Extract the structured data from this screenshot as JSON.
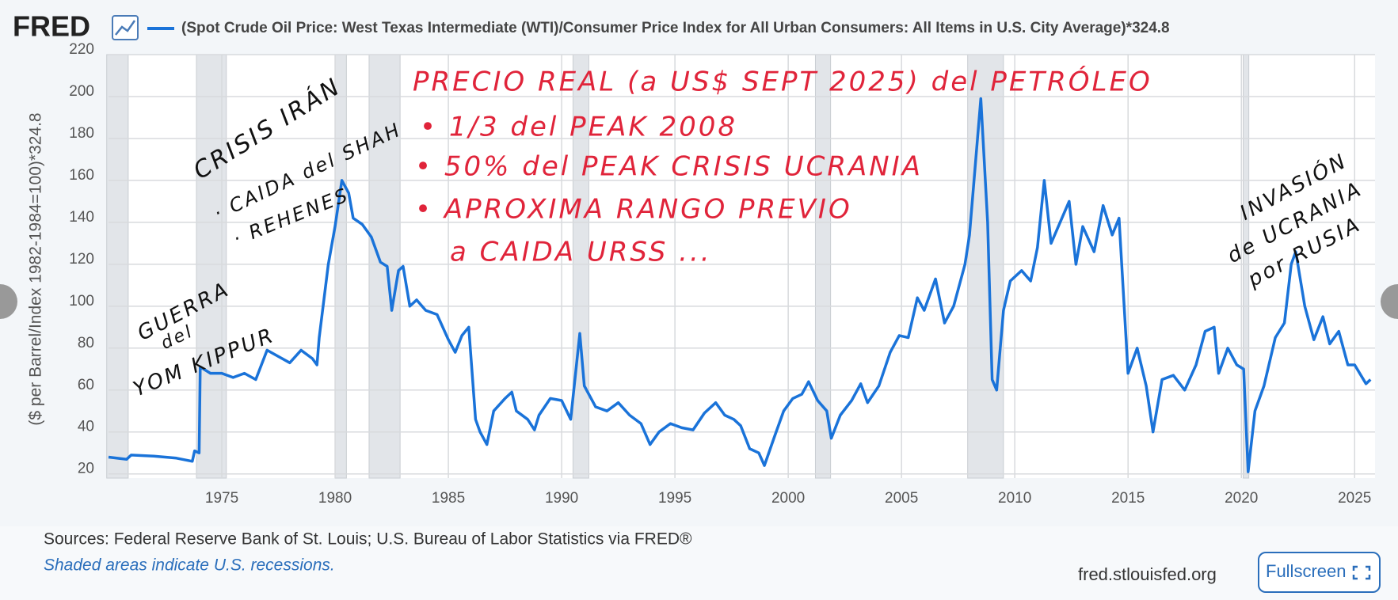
{
  "chart_data": {
    "type": "line",
    "logo": "FRED",
    "y_label": "($ per Barrel/Index 1982-1984=100)*324.8",
    "sources": "Sources: Federal Reserve Bank of St. Louis; U.S. Bureau of Labor Statistics via FRED®",
    "note": "Shaded areas indicate U.S. recessions.",
    "site": "fred.stlouisfed.org",
    "button": "Fullscreen",
    "xlim": [
      1970,
      2025.9
    ],
    "ylim": [
      18,
      220
    ],
    "xticks": [
      1975,
      1980,
      1985,
      1990,
      1995,
      2000,
      2005,
      2010,
      2015,
      2020,
      2025
    ],
    "yticks": [
      20,
      40,
      60,
      80,
      100,
      120,
      140,
      160,
      180,
      200,
      220
    ],
    "grid": true,
    "recessions": [
      [
        1969.92,
        1970.87
      ],
      [
        1973.88,
        1975.2
      ],
      [
        1980,
        1980.5
      ],
      [
        1981.5,
        1982.87
      ],
      [
        1990.5,
        1991.2
      ],
      [
        2001.2,
        2001.87
      ],
      [
        2007.92,
        2009.5
      ],
      [
        2020.08,
        2020.33
      ]
    ],
    "x": [
      1970,
      1970.8,
      1971,
      1972,
      1973,
      1973.7,
      1973.8,
      1974,
      1974.05,
      1974.5,
      1975,
      1975.5,
      1976,
      1976.5,
      1977,
      1977.5,
      1978,
      1978.5,
      1979,
      1979.2,
      1979.3,
      1979.7,
      1980,
      1980.3,
      1980.6,
      1980.8,
      1981.2,
      1981.6,
      1982,
      1982.3,
      1982.5,
      1982.8,
      1983,
      1983.3,
      1983.6,
      1984,
      1984.5,
      1985,
      1985.3,
      1985.6,
      1985.9,
      1986.2,
      1986.4,
      1986.7,
      1987,
      1987.5,
      1987.8,
      1988,
      1988.5,
      1988.8,
      1989,
      1989.5,
      1990,
      1990.4,
      1990.8,
      1991,
      1991.5,
      1992,
      1992.5,
      1993,
      1993.5,
      1993.9,
      1994.3,
      1994.8,
      1995.3,
      1995.8,
      1996.3,
      1996.8,
      1997.2,
      1997.6,
      1997.9,
      1998.3,
      1998.7,
      1998.95,
      1999.4,
      1999.8,
      2000.2,
      2000.6,
      2000.9,
      2001.3,
      2001.7,
      2001.9,
      2002.3,
      2002.8,
      2003.2,
      2003.5,
      2004,
      2004.5,
      2004.9,
      2005.3,
      2005.7,
      2006,
      2006.5,
      2006.9,
      2007.3,
      2007.8,
      2008,
      2008.5,
      2008.8,
      2009,
      2009.2,
      2009.5,
      2009.8,
      2010.3,
      2010.7,
      2011,
      2011.3,
      2011.6,
      2012,
      2012.4,
      2012.7,
      2013,
      2013.5,
      2013.9,
      2014.3,
      2014.6,
      2015,
      2015.4,
      2015.8,
      2016.1,
      2016.5,
      2017,
      2017.5,
      2018,
      2018.4,
      2018.8,
      2019,
      2019.4,
      2019.8,
      2020.1,
      2020.3,
      2020.6,
      2021,
      2021.5,
      2021.9,
      2022.2,
      2022.4,
      2022.8,
      2023.2,
      2023.6,
      2023.9,
      2024.3,
      2024.7,
      2025,
      2025.5,
      2025.7
    ],
    "series": [
      {
        "name": "(Spot Crude Oil Price: West Texas Intermediate (WTI)/Consumer Price Index for All Urban Consumers: All Items in U.S. City Average)*324.8",
        "color": "#1a73d9",
        "values": [
          28,
          27,
          29,
          28.5,
          27.5,
          26,
          31,
          30,
          71,
          68,
          68,
          66,
          68,
          65,
          79,
          76,
          73,
          79,
          75,
          72,
          85,
          120,
          138,
          160,
          154,
          142,
          139,
          133,
          121,
          119,
          98,
          117,
          119,
          100,
          103,
          98,
          96,
          84,
          78,
          86,
          90,
          46,
          40,
          34,
          50,
          56,
          59,
          50,
          46,
          41,
          48,
          56,
          55,
          46,
          87,
          62,
          52,
          50,
          54,
          48,
          44,
          34,
          40,
          44,
          42,
          41,
          49,
          54,
          48,
          46,
          43,
          32,
          30,
          24,
          38,
          50,
          56,
          58,
          64,
          55,
          50,
          37,
          48,
          55,
          63,
          54,
          62,
          78,
          86,
          85,
          104,
          98,
          113,
          92,
          100,
          120,
          134,
          199,
          140,
          65,
          60,
          98,
          112,
          117,
          112,
          128,
          160,
          130,
          140,
          150,
          120,
          138,
          126,
          148,
          134,
          142,
          68,
          80,
          62,
          40,
          65,
          67,
          60,
          72,
          88,
          90,
          68,
          80,
          72,
          70,
          21,
          50,
          62,
          85,
          92,
          120,
          126,
          100,
          84,
          95,
          82,
          88,
          72,
          72,
          63,
          65
        ]
      }
    ],
    "annotations": [
      {
        "text": "PRECIO REAL (a US$ SEPT 2025) del PETRÓLEO",
        "color": "#e0243a"
      },
      {
        "text": "• 1/3 del PEAK 2008",
        "color": "#e0243a"
      },
      {
        "text": "• 50% del PEAK CRISIS UCRANIA",
        "color": "#e0243a"
      },
      {
        "text": "• APROXIMA RANGO PREVIO",
        "color": "#e0243a"
      },
      {
        "text": "a CAIDA URSS ...",
        "color": "#e0243a"
      },
      {
        "text": "CRISIS IRÁN",
        "color": "#111111"
      },
      {
        "text": "· CAIDA del SHAH",
        "color": "#111111"
      },
      {
        "text": "· REHENES",
        "color": "#111111"
      },
      {
        "text": "GUERRA",
        "color": "#111111"
      },
      {
        "text": "del",
        "color": "#111111"
      },
      {
        "text": "YOM KIPPUR",
        "color": "#111111"
      },
      {
        "text": "INVASIÓN",
        "color": "#111111"
      },
      {
        "text": "de UCRANIA",
        "color": "#111111"
      },
      {
        "text": "por RUSIA",
        "color": "#111111"
      }
    ]
  }
}
